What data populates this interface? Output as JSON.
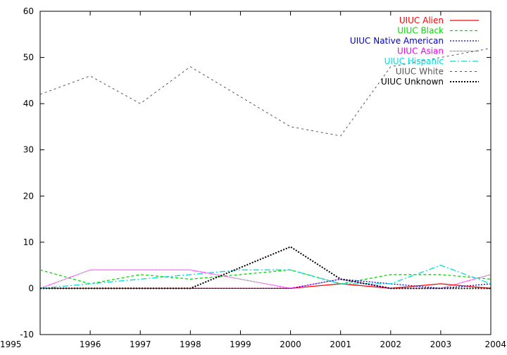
{
  "chart_data": {
    "type": "line",
    "title": "",
    "xlabel": "",
    "ylabel": "",
    "xlim": [
      1995,
      2004
    ],
    "ylim": [
      -10,
      60
    ],
    "x": [
      1995,
      1996,
      1997,
      1998,
      1999,
      2000,
      2001,
      2002,
      2003,
      2004
    ],
    "x_ticks": [
      "1995",
      "1996",
      "1997",
      "1998",
      "1999",
      "2000",
      "2001",
      "2002",
      "2003",
      "2004"
    ],
    "y_ticks": [
      "-10",
      "0",
      "10",
      "20",
      "30",
      "40",
      "50",
      "60"
    ],
    "grid": false,
    "legend_position": "top-right",
    "series": [
      {
        "name": "UIUC Alien",
        "color": "#ff0000",
        "dash": "",
        "width": 1.3,
        "values": [
          0,
          0,
          0,
          0,
          0,
          0,
          1,
          0,
          1,
          0
        ]
      },
      {
        "name": "UIUC Black",
        "color": "#00dd00",
        "dash": "4,3",
        "width": 1.3,
        "values": [
          4,
          1,
          3,
          2,
          3,
          4,
          1,
          3,
          3,
          2
        ]
      },
      {
        "name": "UIUC Native American",
        "color": "#0000cc",
        "dash": "2,2",
        "width": 1.3,
        "values": [
          0,
          0,
          0,
          0,
          0,
          0,
          2,
          1,
          0,
          1
        ]
      },
      {
        "name": "UIUC Asian",
        "color": "#ee00ee",
        "dash": "1,1",
        "width": 1.3,
        "values": [
          0,
          4,
          4,
          4,
          2,
          0,
          2,
          0,
          0,
          3
        ]
      },
      {
        "name": "UIUC Hispanic",
        "color": "#00dddd",
        "dash": "8,3,2,3",
        "width": 1.3,
        "values": [
          0,
          1,
          2,
          3,
          4,
          4,
          1,
          1,
          5,
          1
        ]
      },
      {
        "name": "UIUC White",
        "color": "#555555",
        "dash": "3,4",
        "width": 1,
        "values": [
          42,
          46,
          40,
          48,
          41.5,
          35,
          33,
          48,
          50,
          52
        ]
      },
      {
        "name": "UIUC Unknown",
        "color": "#000000",
        "dash": "2,2",
        "width": 2,
        "values": [
          0,
          0,
          0,
          0,
          4.5,
          9,
          2,
          0,
          0,
          0
        ]
      }
    ]
  }
}
